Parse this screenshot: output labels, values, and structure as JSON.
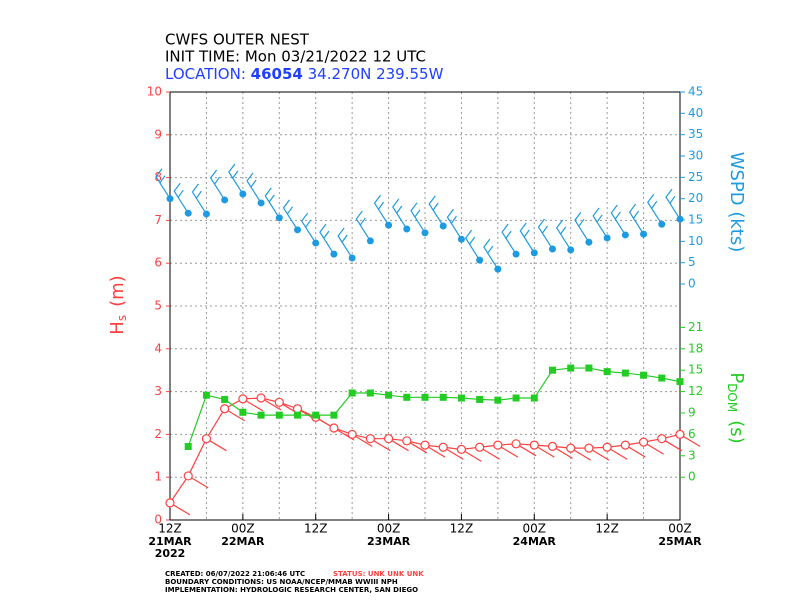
{
  "chart_data": {
    "type": "line",
    "title": "CWFS OUTER NEST",
    "subtitle": "INIT TIME: Mon 03/21/2022 12 UTC",
    "location_label": "LOCATION:",
    "station": "46054",
    "coordinates": "34.270N 239.55W",
    "x": [
      0,
      3,
      6,
      9,
      12,
      15,
      18,
      21,
      24,
      27,
      30,
      33,
      36,
      39,
      42,
      45,
      48,
      51,
      54,
      57,
      60,
      63,
      66,
      69,
      72,
      75,
      78,
      81,
      84
    ],
    "xlim": [
      0,
      84
    ],
    "xticks": [
      {
        "value": 0,
        "label": "12Z"
      },
      {
        "value": 12,
        "label": "00Z"
      },
      {
        "value": 24,
        "label": "12Z"
      },
      {
        "value": 36,
        "label": "00Z"
      },
      {
        "value": 48,
        "label": "12Z"
      },
      {
        "value": 60,
        "label": "00Z"
      },
      {
        "value": 72,
        "label": "12Z"
      },
      {
        "value": 84,
        "label": "00Z"
      }
    ],
    "xtick_dates": [
      {
        "value": 0,
        "label": "21MAR"
      },
      {
        "value": 12,
        "label": "22MAR"
      },
      {
        "value": 36,
        "label": "23MAR"
      },
      {
        "value": 60,
        "label": "24MAR"
      },
      {
        "value": 84,
        "label": "25MAR"
      }
    ],
    "year": "2022",
    "xminorticks": [
      6,
      18,
      30,
      42,
      54,
      66,
      78
    ],
    "grid": true,
    "ylabel": {
      "main": "H",
      "sub": "s",
      "unit": "(m)"
    },
    "ylim": [
      0,
      10
    ],
    "yticks": [
      0,
      1,
      2,
      3,
      4,
      5,
      6,
      7,
      8,
      9,
      10
    ],
    "y2label": "WSPD (kts)",
    "y2lim": [
      -55.3,
      45
    ],
    "y2ticks": [
      0,
      5,
      10,
      15,
      20,
      25,
      30,
      35,
      40,
      45
    ],
    "y3label": {
      "main": "P",
      "sub": "DOM",
      "unit": "(s)"
    },
    "y3lim": [
      -6,
      54
    ],
    "y3ticks": [
      0,
      3,
      6,
      9,
      12,
      15,
      18,
      21
    ],
    "series": [
      {
        "name": "Hs",
        "color": "#ff4040",
        "axis": "y",
        "marker": "open-circle",
        "values": [
          0.4,
          1.03,
          1.9,
          2.6,
          2.83,
          2.85,
          2.75,
          2.6,
          2.4,
          2.15,
          2.0,
          1.9,
          1.9,
          1.85,
          1.75,
          1.7,
          1.65,
          1.7,
          1.75,
          1.78,
          1.75,
          1.72,
          1.68,
          1.68,
          1.7,
          1.75,
          1.82,
          1.9,
          2.0
        ]
      },
      {
        "name": "WSPD",
        "color": "#1e9be0",
        "axis": "y2",
        "marker": "dot",
        "values": [
          20,
          16.6,
          16.4,
          19.7,
          21.1,
          19,
          15.5,
          12.7,
          9.6,
          7,
          6.1,
          10.1,
          13.8,
          12.9,
          12,
          13.6,
          10.5,
          5.6,
          3.5,
          7,
          7.3,
          8.2,
          8,
          9.8,
          10.8,
          11.5,
          11.7,
          14,
          15.2
        ]
      },
      {
        "name": "PDOM",
        "color": "#22cc22",
        "axis": "y3",
        "marker": "square",
        "values": [
          null,
          4.3,
          11.5,
          10.9,
          9.1,
          8.7,
          8.7,
          8.7,
          8.7,
          8.7,
          11.8,
          11.8,
          11.5,
          11.2,
          11.2,
          11.2,
          11.1,
          10.9,
          10.8,
          11.1,
          11.1,
          15,
          15.3,
          15.3,
          14.8,
          14.6,
          14.3,
          13.9,
          13.4
        ]
      }
    ],
    "footer": {
      "created": "CREATED: 06/07/2022 21:06:46 UTC",
      "status": "STATUS: UNK UNK UNK",
      "boundary": "BOUNDARY CONDITIONS: US NOAA/NCEP/MMAB WWIII NPH",
      "implementation": "IMPLEMENTATION: HYDROLOGIC RESEARCH CENTER, SAN DIEGO"
    }
  }
}
